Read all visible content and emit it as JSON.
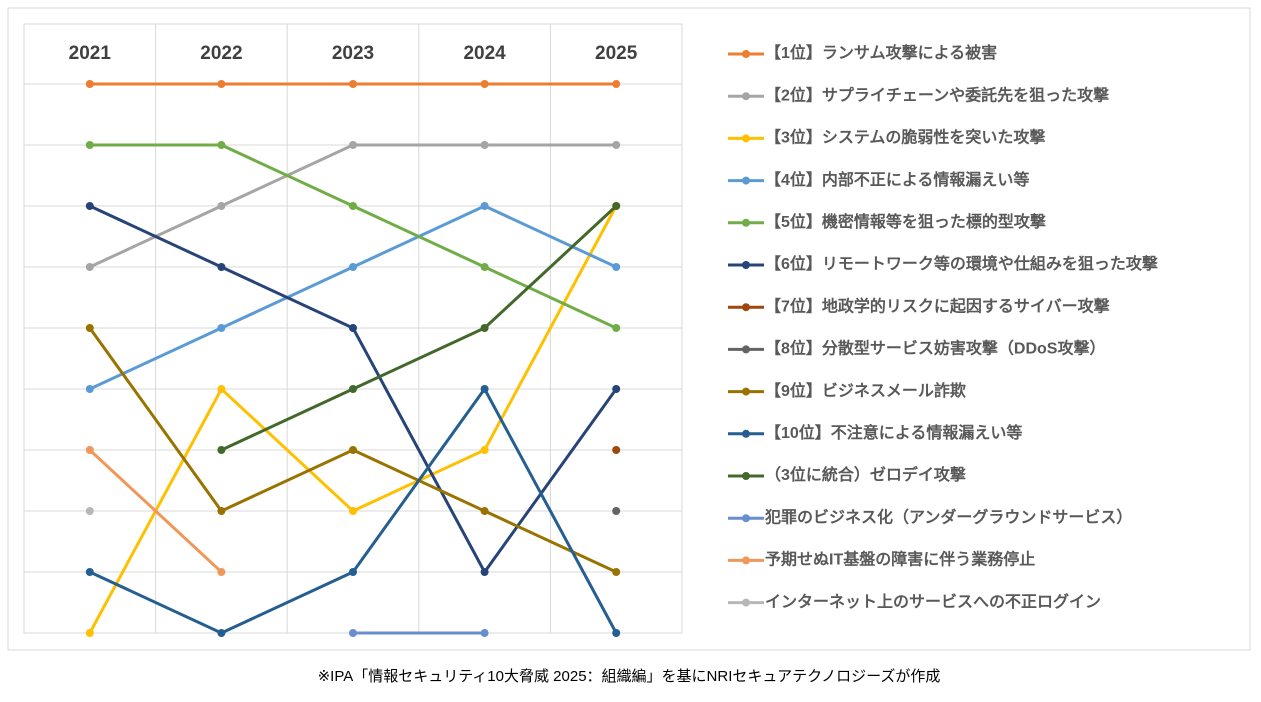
{
  "chart_data": {
    "type": "bump",
    "categories": [
      "2021",
      "2022",
      "2023",
      "2024",
      "2025"
    ],
    "ylim": [
      10,
      0
    ],
    "series": [
      {
        "name": "【1位】ランサム攻撃による被害",
        "color": "#ED7D31",
        "values": [
          1,
          1,
          1,
          1,
          1
        ]
      },
      {
        "name": "【2位】サプライチェーンや委託先を狙った攻撃",
        "color": "#A5A5A5",
        "values": [
          4,
          3,
          2,
          2,
          2
        ]
      },
      {
        "name": "【3位】システムの脆弱性を突いた攻撃",
        "color": "#FFC000",
        "values": [
          10,
          6,
          8,
          7,
          3
        ]
      },
      {
        "name": "【4位】内部不正による情報漏えい等",
        "color": "#5B9BD5",
        "values": [
          6,
          5,
          4,
          3,
          4
        ]
      },
      {
        "name": "【5位】機密情報等を狙った標的型攻撃",
        "color": "#70AD47",
        "values": [
          2,
          2,
          3,
          4,
          5
        ]
      },
      {
        "name": "【6位】リモートワーク等の環境や仕組みを狙った攻撃",
        "color": "#264478",
        "values": [
          3,
          4,
          5,
          9,
          6
        ]
      },
      {
        "name": "【7位】地政学的リスクに起因するサイバー攻撃",
        "color": "#9E480E",
        "values": [
          null,
          null,
          null,
          null,
          7
        ]
      },
      {
        "name": "【8位】分散型サービス妨害攻撃（DDoS攻撃）",
        "color": "#636363",
        "values": [
          null,
          null,
          null,
          null,
          8
        ]
      },
      {
        "name": "【9位】ビジネスメール詐欺",
        "color": "#997300",
        "values": [
          5,
          8,
          7,
          8,
          9
        ]
      },
      {
        "name": "【10位】不注意による情報漏えい等",
        "color": "#255E91",
        "values": [
          9,
          10,
          9,
          6,
          10
        ]
      },
      {
        "name": "（3位に統合）ゼロデイ攻撃",
        "color": "#43682B",
        "values": [
          null,
          7,
          6,
          5,
          3
        ]
      },
      {
        "name": "犯罪のビジネス化（アンダーグラウンドサービス）",
        "color": "#698ED0",
        "values": [
          null,
          null,
          10,
          10,
          null
        ]
      },
      {
        "name": "予期せぬIT基盤の障害に伴う業務停止",
        "color": "#F1975A",
        "values": [
          7,
          9,
          null,
          null,
          null
        ]
      },
      {
        "name": "インターネット上のサービスへの不正ログイン",
        "color": "#B7B7B7",
        "values": [
          8,
          null,
          null,
          null,
          null
        ]
      }
    ],
    "source": "※IPA「情報セキュリティ10大脅威 2025：組織編」を基にNRIセキュアテクノロジーズが作成"
  }
}
